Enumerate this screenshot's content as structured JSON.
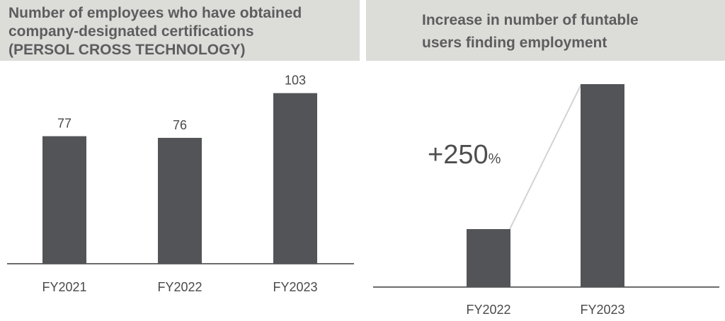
{
  "chart_data": [
    {
      "type": "bar",
      "title": "Number of employees who have obtained\ncompany-designated certifications\n(PERSOL CROSS TECHNOLOGY)",
      "categories": [
        "FY2021",
        "FY2022",
        "FY2023"
      ],
      "values": [
        77,
        76,
        103
      ],
      "data_labels": [
        "77",
        "76",
        "103"
      ],
      "ylim": [
        0,
        108
      ],
      "grid": false,
      "legend": "none",
      "bar_color": "#535458"
    },
    {
      "type": "bar",
      "title": "Increase in number of funtable\nusers finding employment",
      "categories": [
        "FY2022",
        "FY2023"
      ],
      "values": [
        1,
        3.5
      ],
      "ylim": [
        0,
        3.5
      ],
      "grid": false,
      "legend": "none",
      "annotation": {
        "sign": "+",
        "value": "250",
        "unit": "%"
      },
      "bar_color": "#535458",
      "connector_color": "#d3d3d3"
    }
  ]
}
